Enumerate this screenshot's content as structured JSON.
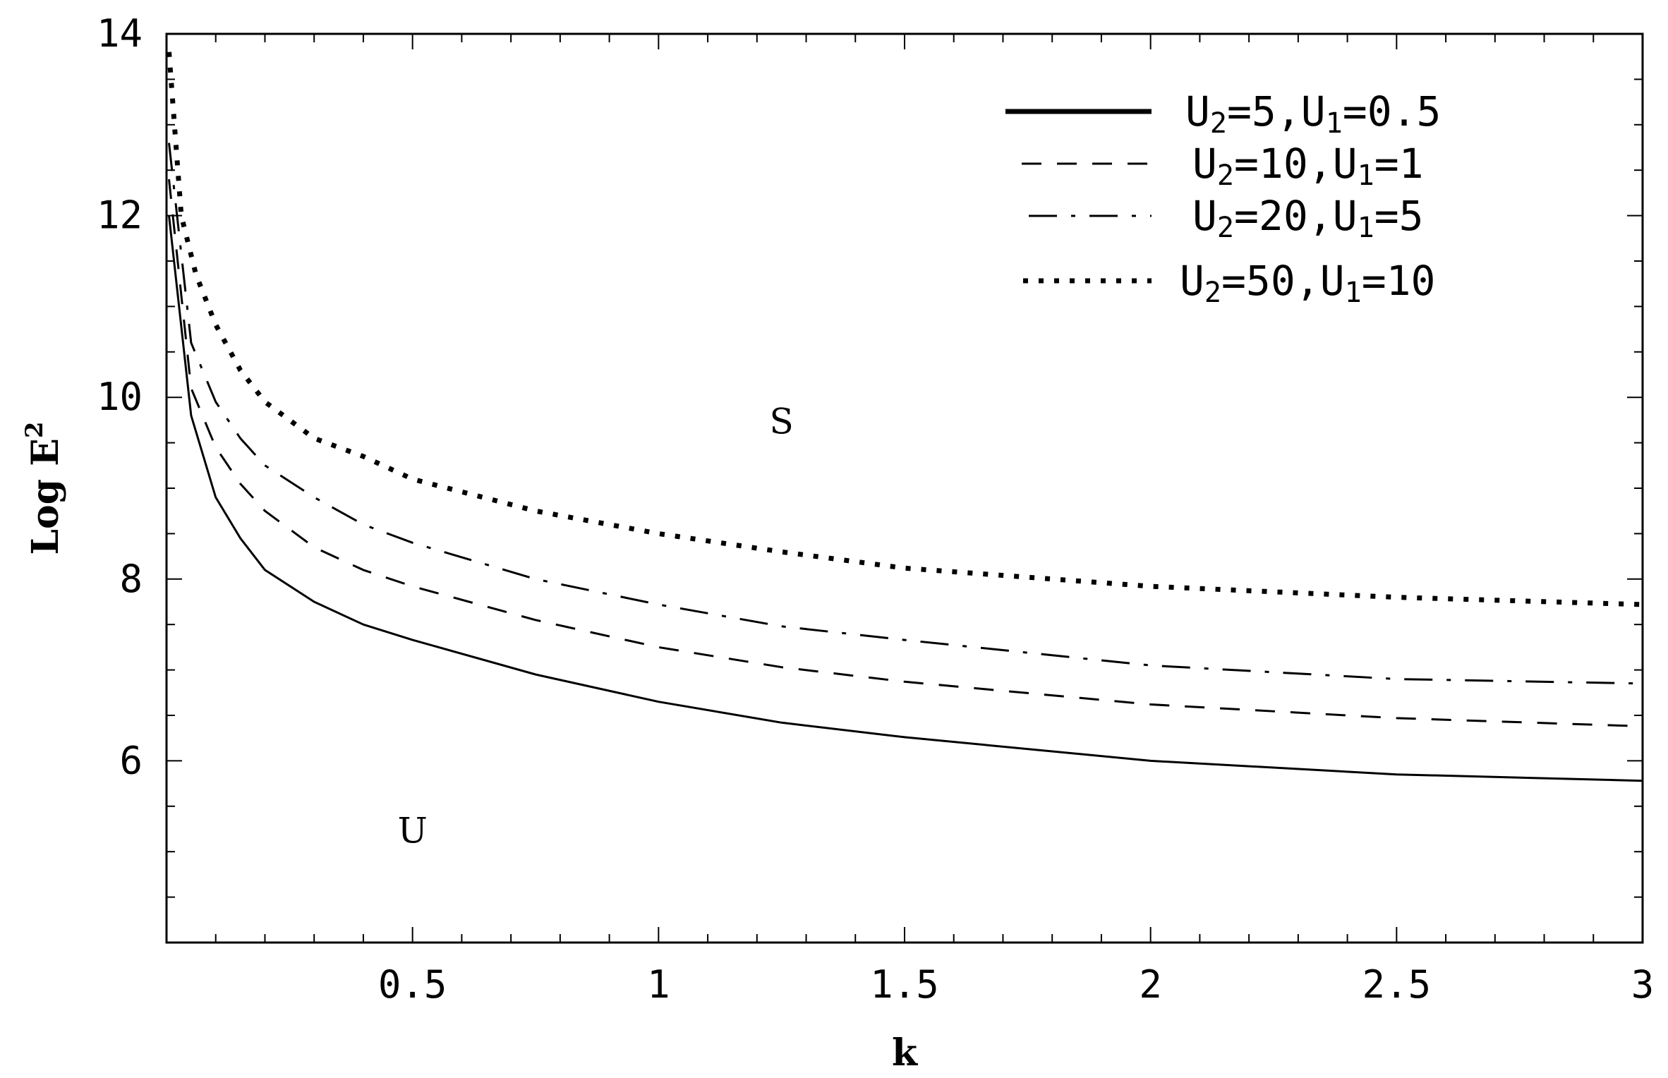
{
  "chart_data": {
    "type": "line",
    "title": "",
    "xlabel": "k",
    "ylabel_base": "Log E",
    "ylabel_sup": "2",
    "xlim": [
      0,
      3
    ],
    "ylim": [
      4,
      14
    ],
    "xticks": [
      {
        "value": 0.5,
        "label": "0.5"
      },
      {
        "value": 1,
        "label": "1"
      },
      {
        "value": 1.5,
        "label": "1.5"
      },
      {
        "value": 2,
        "label": "2"
      },
      {
        "value": 2.5,
        "label": "2.5"
      },
      {
        "value": 3,
        "label": "3"
      }
    ],
    "yticks": [
      {
        "value": 6,
        "label": "6"
      },
      {
        "value": 8,
        "label": "8"
      },
      {
        "value": 10,
        "label": "10"
      },
      {
        "value": 12,
        "label": "12"
      },
      {
        "value": 14,
        "label": "14"
      }
    ],
    "grid": false,
    "legend_position": "top-right",
    "region_labels": [
      {
        "text": "S",
        "x": 1.25,
        "y": 9.6
      },
      {
        "text": "U",
        "x": 0.5,
        "y": 5.1
      }
    ],
    "series": [
      {
        "name_parts": [
          "U",
          "2",
          "=5,U",
          "1",
          "=0.5"
        ],
        "style": "solid",
        "x": [
          0.005,
          0.05,
          0.1,
          0.15,
          0.2,
          0.3,
          0.4,
          0.5,
          0.75,
          1.0,
          1.25,
          1.5,
          2.0,
          2.5,
          3.0
        ],
        "y": [
          12.0,
          9.8,
          8.9,
          8.45,
          8.1,
          7.75,
          7.5,
          7.33,
          6.95,
          6.65,
          6.42,
          6.26,
          6.0,
          5.85,
          5.78
        ]
      },
      {
        "name_parts": [
          "U",
          "2",
          "=10,U",
          "1",
          "=1"
        ],
        "style": "dashed",
        "x": [
          0.005,
          0.05,
          0.1,
          0.15,
          0.2,
          0.3,
          0.4,
          0.5,
          0.75,
          1.0,
          1.25,
          1.5,
          2.0,
          2.5,
          3.0
        ],
        "y": [
          12.4,
          10.1,
          9.45,
          9.05,
          8.75,
          8.35,
          8.1,
          7.92,
          7.55,
          7.25,
          7.03,
          6.87,
          6.62,
          6.47,
          6.38
        ]
      },
      {
        "name_parts": [
          "U",
          "2",
          "=20,U",
          "1",
          "=5"
        ],
        "style": "dashdot",
        "x": [
          0.005,
          0.05,
          0.1,
          0.15,
          0.2,
          0.3,
          0.4,
          0.5,
          0.75,
          1.0,
          1.25,
          1.5,
          2.0,
          2.5,
          3.0
        ],
        "y": [
          12.8,
          10.6,
          9.95,
          9.55,
          9.25,
          8.9,
          8.6,
          8.4,
          8.0,
          7.72,
          7.48,
          7.33,
          7.05,
          6.9,
          6.85
        ]
      },
      {
        "name_parts": [
          "U",
          "2",
          "=50,U",
          "1",
          "=10"
        ],
        "style": "dotted",
        "x": [
          0.005,
          0.03,
          0.06,
          0.1,
          0.15,
          0.2,
          0.3,
          0.4,
          0.5,
          0.75,
          1.0,
          1.25,
          1.5,
          2.0,
          2.5,
          3.0
        ],
        "y": [
          13.8,
          12.0,
          11.35,
          10.8,
          10.3,
          9.95,
          9.55,
          9.35,
          9.1,
          8.75,
          8.5,
          8.3,
          8.12,
          7.92,
          7.8,
          7.72
        ]
      }
    ]
  }
}
